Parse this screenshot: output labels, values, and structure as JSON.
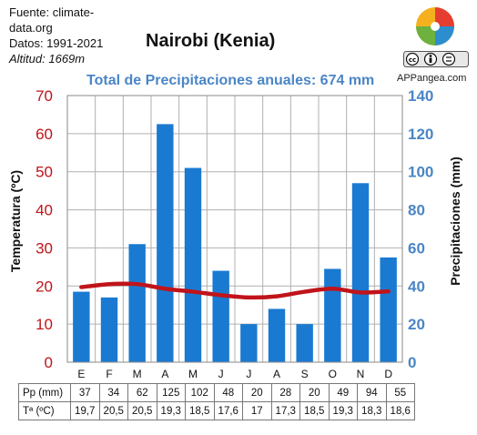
{
  "meta": {
    "source": "Fuente: climate-data.org",
    "dates": "Datos: 1991-2021",
    "altitude": "Altitud: 1669m"
  },
  "brand": "APPangea.com",
  "colors": {
    "bars": "#1a7ad1",
    "temperature_line": "#c0141a",
    "left_axis": "#c0141a",
    "right_axis": "#4a86c5",
    "grid": "#b0b0b0"
  },
  "icons": [
    "puzzle-logo-icon",
    "cc-license-icon"
  ],
  "chart_data": {
    "type": "bar",
    "title": "Nairobi (Kenia)",
    "subtitle": "Total de Precipitaciones anuales: 674 mm",
    "categories": [
      "E",
      "F",
      "M",
      "A",
      "M",
      "J",
      "J",
      "A",
      "S",
      "O",
      "N",
      "D"
    ],
    "series": [
      {
        "name": "Pp (mm)",
        "type": "bar",
        "axis": "right",
        "values": [
          37,
          34,
          62,
          125,
          102,
          48,
          20,
          28,
          20,
          49,
          94,
          55
        ],
        "labels": [
          "37",
          "34",
          "62",
          "125",
          "102",
          "48",
          "20",
          "28",
          "20",
          "49",
          "94",
          "55"
        ]
      },
      {
        "name": "Tª (ºC)",
        "type": "line",
        "axis": "left",
        "values": [
          19.7,
          20.5,
          20.5,
          19.3,
          18.5,
          17.6,
          17,
          17.3,
          18.5,
          19.3,
          18.3,
          18.6
        ],
        "labels": [
          "19,7",
          "20,5",
          "20,5",
          "19,3",
          "18,5",
          "17,6",
          "17",
          "17,3",
          "18,5",
          "19,3",
          "18,3",
          "18,6"
        ]
      }
    ],
    "ylabel": "Temperatura (ºC)",
    "y2label": "Precipitaciones (mm)",
    "ylim": [
      0,
      70
    ],
    "y2lim": [
      0,
      140
    ],
    "yticks": [
      0,
      10,
      20,
      30,
      40,
      50,
      60,
      70
    ],
    "y2ticks": [
      0,
      20,
      40,
      60,
      80,
      100,
      120,
      140
    ],
    "grid": true,
    "legend": "table-below"
  }
}
